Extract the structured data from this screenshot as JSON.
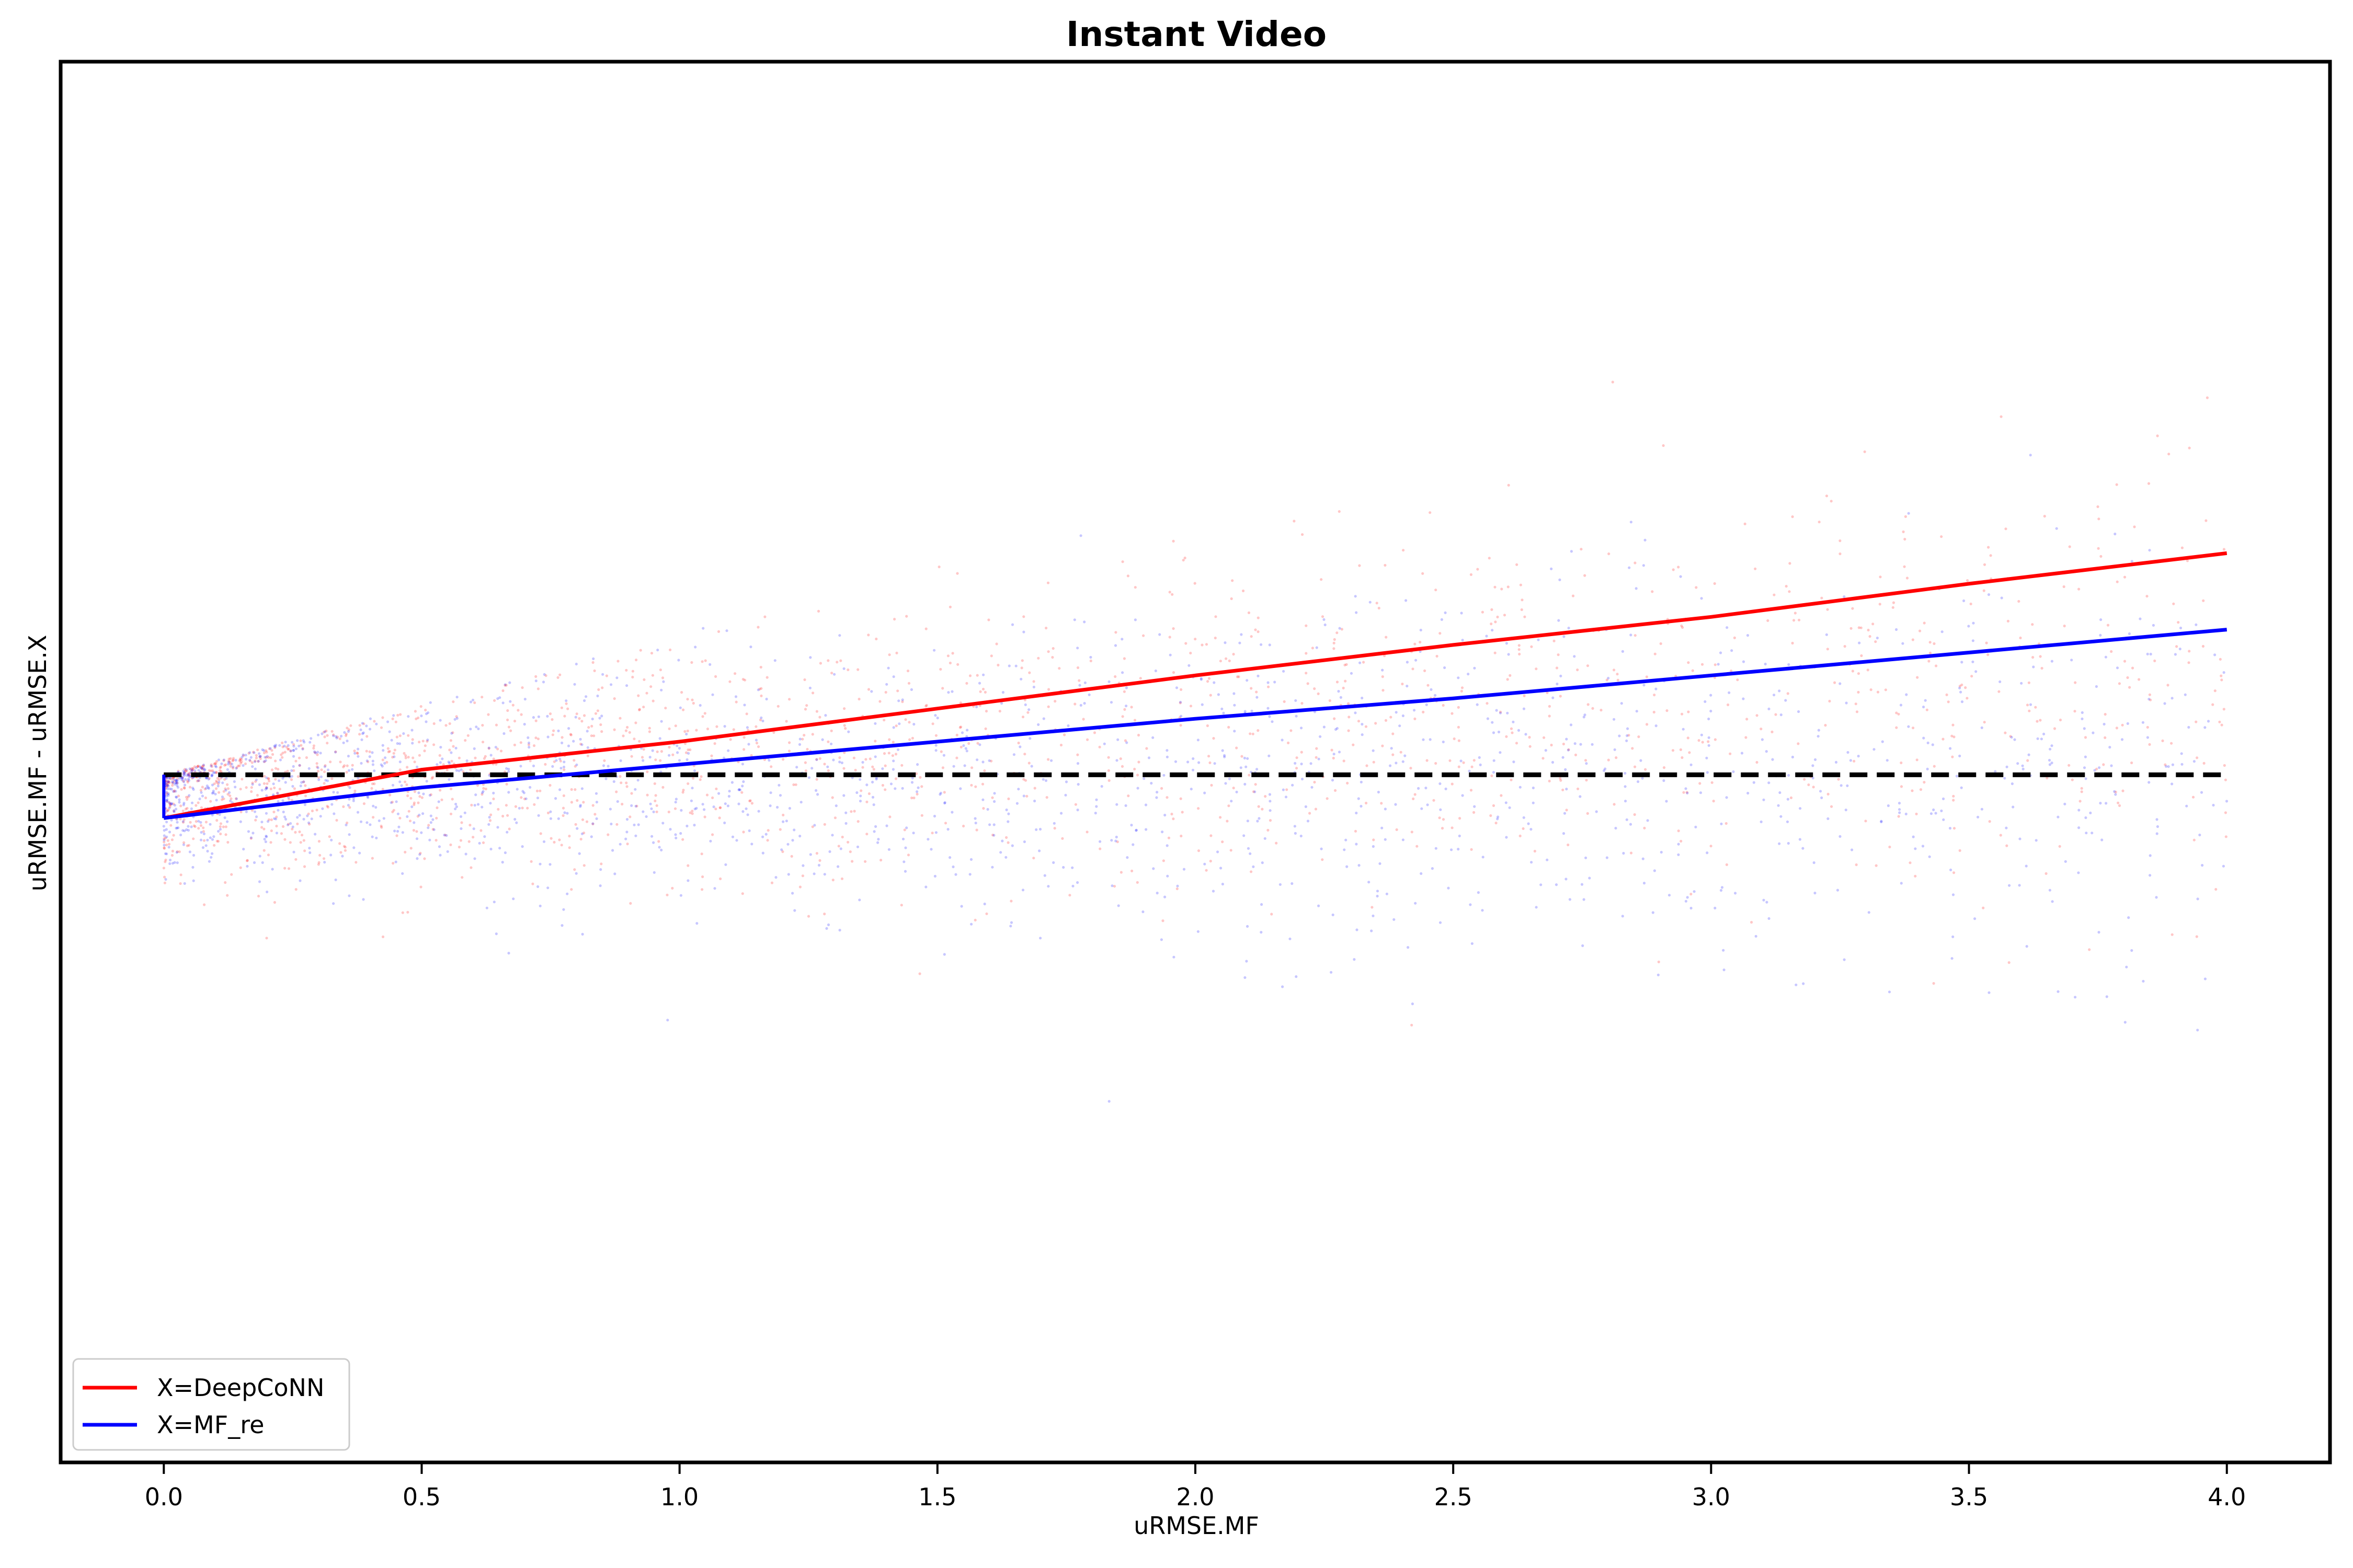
{
  "chart_data": {
    "type": "scatter",
    "title": "Instant Video",
    "xlabel": "uRMSE.MF",
    "ylabel": "uRMSE.MF - uRMSE.X",
    "xlim": [
      -0.2,
      4.2
    ],
    "ylim": [
      -2.7,
      2.8
    ],
    "x_ticks": [
      "0.0",
      "0.5",
      "1.0",
      "1.5",
      "2.0",
      "2.5",
      "3.0",
      "3.5",
      "4.0"
    ],
    "y_ticks_shown": false,
    "grid": false,
    "legend_position": "lower-left",
    "reference_line": {
      "y": 0,
      "style": "dashed",
      "color": "#000000"
    },
    "series": [
      {
        "name": "X=DeepCoNN",
        "color": "#ff0000",
        "scatter_color": "#ff0000",
        "trend": {
          "x": [
            0,
            0.5,
            1,
            1.5,
            2,
            2.5,
            3,
            3.5,
            4
          ],
          "y": [
            -0.17,
            0.02,
            0.13,
            0.26,
            0.39,
            0.51,
            0.62,
            0.75,
            0.87
          ]
        }
      },
      {
        "name": "X=MF_re",
        "color": "#0000ff",
        "scatter_color": "#0000ff",
        "trend": {
          "x": [
            0,
            0.5,
            1,
            1.5,
            2,
            2.5,
            3,
            3.5,
            4
          ],
          "y": [
            -0.17,
            -0.05,
            0.04,
            0.13,
            0.22,
            0.3,
            0.39,
            0.48,
            0.57
          ]
        }
      }
    ]
  }
}
